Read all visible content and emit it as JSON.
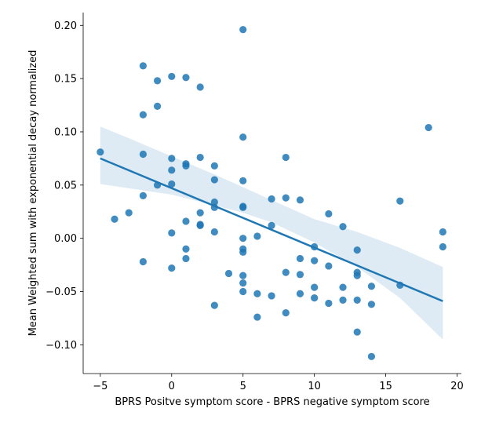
{
  "chart_data": {
    "type": "scatter",
    "title": "",
    "xlabel": "BPRS Positve symptom score - BPRS negative symptom score",
    "ylabel": "Mean Weighted sum with exponential decay normalized",
    "xlim": [
      -6.2,
      20.3
    ],
    "ylim": [
      -0.127,
      0.212
    ],
    "xticks": [
      -5,
      0,
      5,
      10,
      15,
      20
    ],
    "xtick_labels": [
      "−5",
      "0",
      "5",
      "10",
      "15",
      "20"
    ],
    "yticks": [
      -0.1,
      -0.05,
      0.0,
      0.05,
      0.1,
      0.15,
      0.2
    ],
    "ytick_labels": [
      "−0.10",
      "−0.05",
      "0.00",
      "0.05",
      "0.10",
      "0.15",
      "0.20"
    ],
    "colors": {
      "points": "#1f77b4",
      "regression_line": "#1f77b4",
      "confidence_band": "#1f77b4"
    },
    "points": [
      [
        -5,
        0.081
      ],
      [
        -4,
        0.018
      ],
      [
        -3,
        0.024
      ],
      [
        -2,
        0.162
      ],
      [
        -2,
        0.116
      ],
      [
        -2,
        0.079
      ],
      [
        -2,
        0.04
      ],
      [
        -2,
        -0.022
      ],
      [
        -1,
        0.148
      ],
      [
        -1,
        0.124
      ],
      [
        -1,
        0.05
      ],
      [
        0,
        0.152
      ],
      [
        0,
        0.075
      ],
      [
        0,
        0.064
      ],
      [
        0,
        0.051
      ],
      [
        0,
        0.005
      ],
      [
        0,
        -0.028
      ],
      [
        1,
        0.151
      ],
      [
        1,
        0.07
      ],
      [
        1,
        0.068
      ],
      [
        1,
        0.016
      ],
      [
        1,
        -0.01
      ],
      [
        1,
        -0.019
      ],
      [
        2,
        0.142
      ],
      [
        2,
        0.076
      ],
      [
        2,
        0.024
      ],
      [
        2,
        0.013
      ],
      [
        2,
        0.012
      ],
      [
        3,
        0.068
      ],
      [
        3,
        0.055
      ],
      [
        3,
        0.034
      ],
      [
        3,
        0.029
      ],
      [
        3,
        0.006
      ],
      [
        3,
        -0.063
      ],
      [
        4,
        -0.033
      ],
      [
        5,
        0.196
      ],
      [
        5,
        0.095
      ],
      [
        5,
        0.054
      ],
      [
        5,
        0.03
      ],
      [
        5,
        0.029
      ],
      [
        5,
        0.0
      ],
      [
        5,
        -0.01
      ],
      [
        5,
        -0.013
      ],
      [
        5,
        -0.035
      ],
      [
        5,
        -0.042
      ],
      [
        5,
        -0.05
      ],
      [
        6,
        0.002
      ],
      [
        6,
        -0.052
      ],
      [
        6,
        -0.074
      ],
      [
        7,
        0.037
      ],
      [
        7,
        0.012
      ],
      [
        7,
        -0.054
      ],
      [
        8,
        0.076
      ],
      [
        8,
        0.038
      ],
      [
        8,
        -0.032
      ],
      [
        8,
        -0.07
      ],
      [
        9,
        0.036
      ],
      [
        9,
        -0.019
      ],
      [
        9,
        -0.034
      ],
      [
        9,
        -0.052
      ],
      [
        10,
        -0.008
      ],
      [
        10,
        -0.021
      ],
      [
        10,
        -0.046
      ],
      [
        10,
        -0.056
      ],
      [
        11,
        0.023
      ],
      [
        11,
        -0.026
      ],
      [
        11,
        -0.061
      ],
      [
        12,
        0.011
      ],
      [
        12,
        -0.046
      ],
      [
        12,
        -0.058
      ],
      [
        13,
        -0.011
      ],
      [
        13,
        -0.032
      ],
      [
        13,
        -0.035
      ],
      [
        13,
        -0.058
      ],
      [
        13,
        -0.088
      ],
      [
        14,
        -0.045
      ],
      [
        14,
        -0.062
      ],
      [
        14,
        -0.111
      ],
      [
        16,
        0.035
      ],
      [
        16,
        -0.044
      ],
      [
        18,
        0.104
      ],
      [
        19,
        0.006
      ],
      [
        19,
        -0.008
      ]
    ],
    "regression": {
      "x": [
        -5,
        19
      ],
      "y": [
        0.075,
        -0.059
      ]
    },
    "confidence_band": {
      "x": [
        -5,
        -3,
        0,
        3,
        5,
        7,
        10,
        13,
        16,
        19
      ],
      "upper": [
        0.105,
        0.094,
        0.077,
        0.06,
        0.048,
        0.036,
        0.018,
        0.006,
        -0.009,
        -0.027
      ],
      "lower": [
        0.051,
        0.047,
        0.041,
        0.031,
        0.024,
        0.015,
        -0.004,
        -0.027,
        -0.056,
        -0.095
      ]
    }
  }
}
